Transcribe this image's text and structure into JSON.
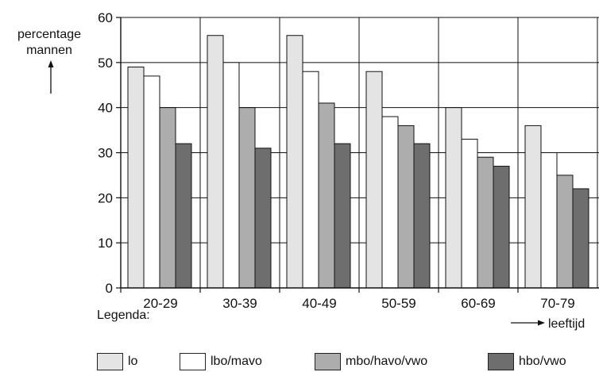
{
  "chart_data": {
    "type": "bar",
    "ylabel_line1": "percentage",
    "ylabel_line2": "mannen",
    "xlabel": "leeftijd",
    "ylim": [
      0,
      60
    ],
    "yticks": [
      "0",
      "10",
      "20",
      "30",
      "40",
      "50",
      "60"
    ],
    "categories": [
      "20-29",
      "30-39",
      "40-49",
      "50-59",
      "60-69",
      "70-79"
    ],
    "series": [
      {
        "name": "lo",
        "values": [
          49,
          56,
          56,
          48,
          40,
          36
        ],
        "color": "#e4e4e4"
      },
      {
        "name": "lbo/mavo",
        "values": [
          47,
          50,
          48,
          38,
          33,
          30
        ],
        "color": "#ffffff"
      },
      {
        "name": "mbo/havo/vwo",
        "values": [
          40,
          40,
          41,
          36,
          29,
          25
        ],
        "color": "#adadad"
      },
      {
        "name": "hbo/vwo",
        "values": [
          32,
          31,
          32,
          32,
          27,
          22
        ],
        "color": "#6e6e6e"
      }
    ],
    "grid": true,
    "legend_title": "Legenda:",
    "legend_position": "bottom"
  }
}
